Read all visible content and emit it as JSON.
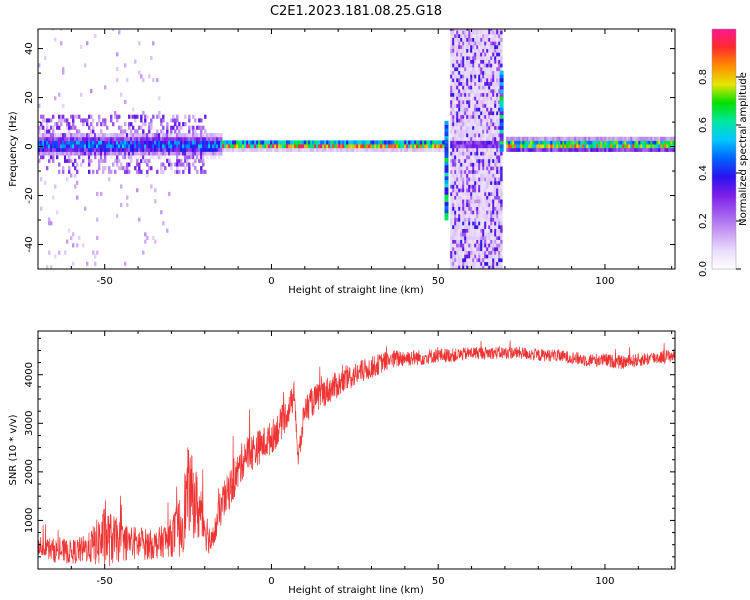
{
  "title": "C2E1.2023.181.08.25.G18",
  "chart_data": [
    {
      "type": "heatmap",
      "xlabel": "Height of straight line (km)",
      "ylabel": "Frequency (Hz)",
      "xlim": [
        -70,
        121
      ],
      "ylim": [
        -50,
        48
      ],
      "xticks": [
        -50,
        0,
        50,
        100
      ],
      "yticks": [
        -40,
        -20,
        0,
        20,
        40
      ],
      "grid": false,
      "colorbar": {
        "label": "Normalized spectral amplitude",
        "range": [
          0,
          1
        ],
        "ticks": [
          0.0,
          0.2,
          0.4,
          0.6,
          0.8
        ],
        "tick_labels": [
          "0.0",
          "0.2",
          "0.4",
          "0.6",
          "0.8"
        ],
        "colormap": [
          "#ffffff",
          "#e9dcfb",
          "#c79cf2",
          "#a25cf0",
          "#7b1fe8",
          "#2a12f0",
          "#0064ff",
          "#00c8ff",
          "#00e6a0",
          "#00e000",
          "#e6e600",
          "#ff8c00",
          "#ff2d2d",
          "#ff1493"
        ]
      },
      "main_band": [
        {
          "x_range": [
            -70,
            -15
          ],
          "freq_center": 0,
          "half_width_hz": 5,
          "peak": 0.45
        },
        {
          "x_range": [
            -15,
            52
          ],
          "freq_center": 0,
          "half_width_hz": 2,
          "peak": 0.9
        },
        {
          "x_range": [
            70,
            121
          ],
          "freq_center": 0,
          "half_width_hz": 3,
          "peak": 0.75
        }
      ],
      "noisy_region": {
        "x_range": [
          53.5,
          69
        ],
        "freq_range": [
          -50,
          48
        ],
        "level": 0.25
      },
      "spikes": [
        {
          "x": 52.5,
          "freq_range": [
            -30,
            10
          ]
        },
        {
          "x": 69,
          "freq_range": [
            -2,
            30
          ]
        }
      ]
    },
    {
      "type": "line",
      "xlabel": "Height of straight line (km)",
      "ylabel": "SNR (10 * v/v)",
      "xlim": [
        -70,
        121
      ],
      "ylim": [
        0,
        4900
      ],
      "xticks": [
        -50,
        0,
        50,
        100
      ],
      "yticks": [
        1000,
        2000,
        3000,
        4000
      ],
      "grid": false,
      "color": "#ee3333",
      "series": [
        {
          "x": [
            -70,
            -65,
            -60,
            -55,
            -50,
            -45,
            -40,
            -35,
            -30,
            -27,
            -25,
            -23,
            -20,
            -18,
            -15,
            -12,
            -10,
            -8,
            -6,
            -3,
            0,
            3,
            5,
            7,
            8,
            10,
            15,
            20,
            25,
            30,
            35,
            40,
            45,
            50,
            55,
            60,
            65,
            70,
            75,
            80,
            85,
            90,
            95,
            100,
            105,
            110,
            115,
            121
          ],
          "values": [
            500,
            380,
            350,
            420,
            650,
            560,
            520,
            500,
            650,
            900,
            1650,
            1400,
            900,
            500,
            1300,
            1700,
            2000,
            2350,
            2400,
            2550,
            2700,
            3000,
            3250,
            3600,
            2200,
            3300,
            3600,
            3800,
            4000,
            4150,
            4300,
            4350,
            4350,
            4400,
            4400,
            4450,
            4450,
            4450,
            4450,
            4400,
            4400,
            4350,
            4300,
            4300,
            4250,
            4300,
            4350,
            4400
          ],
          "noise": [
            200,
            250,
            250,
            300,
            650,
            400,
            350,
            300,
            400,
            700,
            900,
            800,
            500,
            250,
            400,
            400,
            400,
            400,
            400,
            350,
            350,
            350,
            300,
            300,
            300,
            300,
            300,
            280,
            250,
            230,
            200,
            180,
            160,
            150,
            140,
            130,
            130,
            130,
            130,
            130,
            130,
            130,
            140,
            140,
            140,
            140,
            140,
            140
          ]
        }
      ]
    }
  ]
}
